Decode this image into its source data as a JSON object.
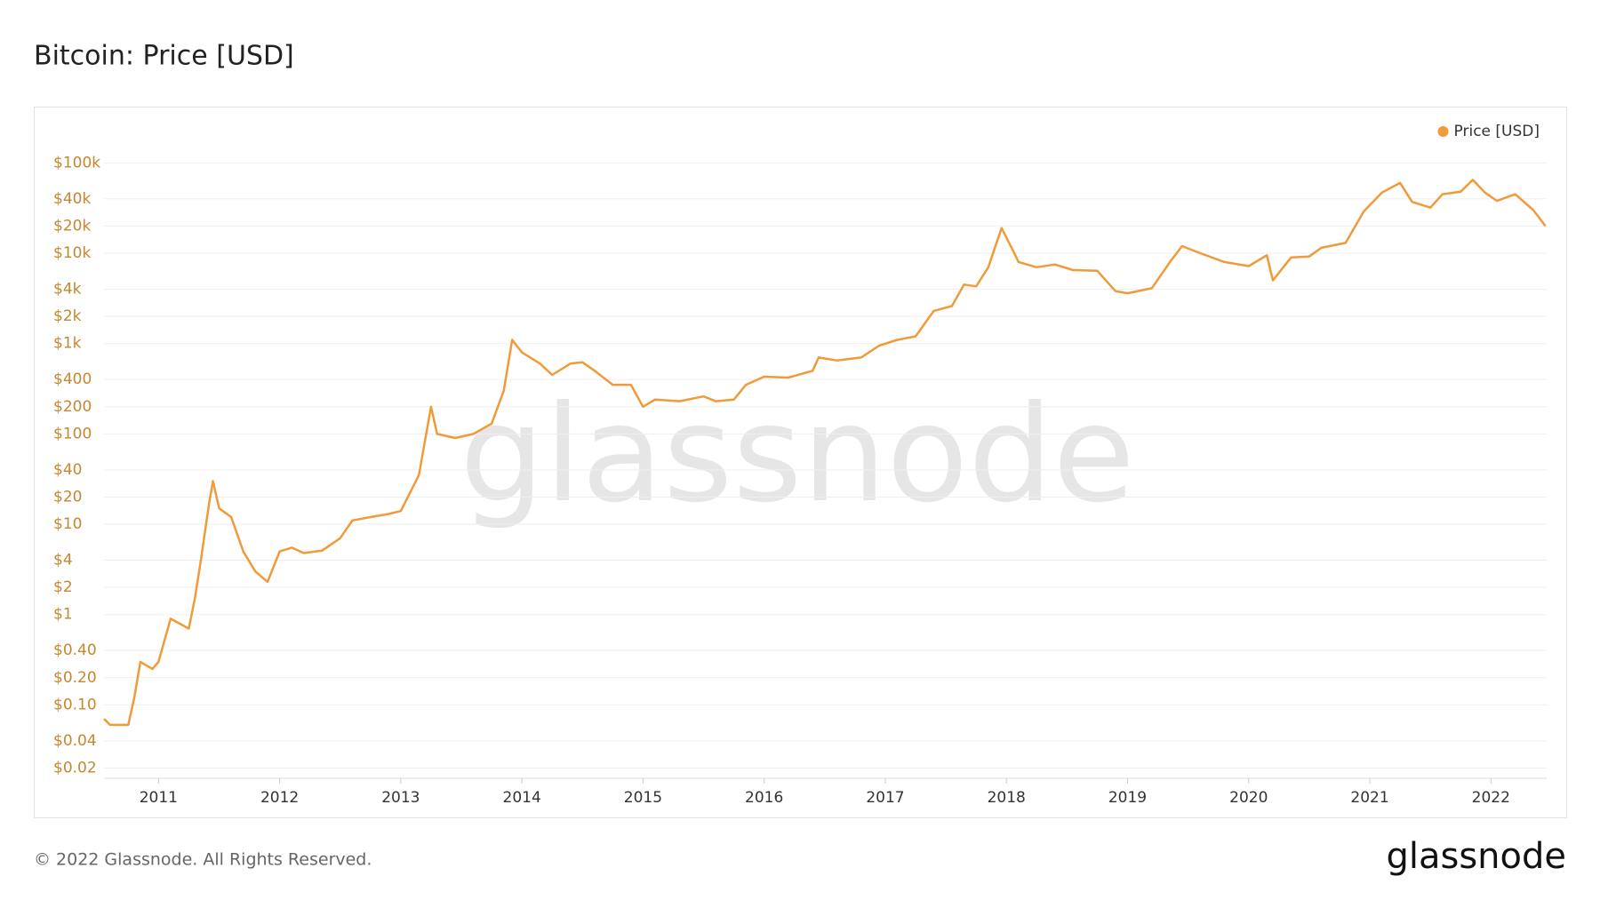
{
  "chart_data": {
    "type": "line",
    "title": "Bitcoin: Price [USD]",
    "footer": "© 2022 Glassnode. All Rights Reserved.",
    "logo": "glassnode",
    "watermark": "glassnode",
    "log_scale": true,
    "grid": true,
    "legend": "top-right",
    "xlim": [
      2010.55,
      2022.46
    ],
    "xticks": [
      2011,
      2012,
      2013,
      2014,
      2015,
      2016,
      2017,
      2018,
      2019,
      2020,
      2021,
      2022
    ],
    "ylim": [
      0.0154,
      155000
    ],
    "yticks": [
      {
        "value": 0.02,
        "label": "$0.02"
      },
      {
        "value": 0.04,
        "label": "$0.04"
      },
      {
        "value": 0.1,
        "label": "$0.10"
      },
      {
        "value": 0.2,
        "label": "$0.20"
      },
      {
        "value": 0.4,
        "label": "$0.40"
      },
      {
        "value": 1,
        "label": "$1"
      },
      {
        "value": 2,
        "label": "$2"
      },
      {
        "value": 4,
        "label": "$4"
      },
      {
        "value": 10,
        "label": "$10"
      },
      {
        "value": 20,
        "label": "$20"
      },
      {
        "value": 40,
        "label": "$40"
      },
      {
        "value": 100,
        "label": "$100"
      },
      {
        "value": 200,
        "label": "$200"
      },
      {
        "value": 400,
        "label": "$400"
      },
      {
        "value": 1000,
        "label": "$1k"
      },
      {
        "value": 2000,
        "label": "$2k"
      },
      {
        "value": 4000,
        "label": "$4k"
      },
      {
        "value": 10000,
        "label": "$10k"
      },
      {
        "value": 20000,
        "label": "$20k"
      },
      {
        "value": 40000,
        "label": "$40k"
      },
      {
        "value": 100000,
        "label": "$100k"
      }
    ],
    "x": [
      2010.55,
      2010.6,
      2010.75,
      2010.8,
      2010.85,
      2010.95,
      2011.0,
      2011.1,
      2011.25,
      2011.3,
      2011.35,
      2011.42,
      2011.45,
      2011.5,
      2011.6,
      2011.7,
      2011.8,
      2011.9,
      2012.0,
      2012.1,
      2012.2,
      2012.35,
      2012.5,
      2012.6,
      2012.75,
      2012.9,
      2013.0,
      2013.15,
      2013.25,
      2013.3,
      2013.45,
      2013.6,
      2013.75,
      2013.85,
      2013.92,
      2014.0,
      2014.15,
      2014.25,
      2014.4,
      2014.5,
      2014.6,
      2014.75,
      2014.9,
      2015.0,
      2015.1,
      2015.3,
      2015.5,
      2015.6,
      2015.75,
      2015.85,
      2016.0,
      2016.2,
      2016.4,
      2016.45,
      2016.6,
      2016.8,
      2016.95,
      2017.1,
      2017.25,
      2017.4,
      2017.55,
      2017.65,
      2017.75,
      2017.85,
      2017.96,
      2018.05,
      2018.1,
      2018.25,
      2018.4,
      2018.55,
      2018.75,
      2018.9,
      2019.0,
      2019.2,
      2019.35,
      2019.45,
      2019.6,
      2019.8,
      2020.0,
      2020.15,
      2020.2,
      2020.35,
      2020.5,
      2020.6,
      2020.8,
      2020.95,
      2021.1,
      2021.25,
      2021.35,
      2021.5,
      2021.6,
      2021.75,
      2021.85,
      2021.95,
      2022.05,
      2022.2,
      2022.35,
      2022.45
    ],
    "series": [
      {
        "name": "Price [USD]",
        "color": "#f09a3a",
        "values": [
          0.07,
          0.06,
          0.06,
          0.12,
          0.3,
          0.25,
          0.3,
          0.9,
          0.7,
          1.5,
          4,
          18,
          30,
          15,
          12,
          5,
          3,
          2.3,
          5,
          5.5,
          4.8,
          5.1,
          7,
          11,
          12,
          13,
          14,
          35,
          200,
          100,
          90,
          100,
          130,
          300,
          1100,
          800,
          600,
          450,
          600,
          620,
          500,
          350,
          350,
          200,
          240,
          230,
          260,
          230,
          240,
          350,
          430,
          420,
          500,
          700,
          650,
          700,
          950,
          1100,
          1200,
          2300,
          2600,
          4500,
          4300,
          7000,
          19000,
          11000,
          8000,
          7000,
          7500,
          6500,
          6400,
          3800,
          3600,
          4100,
          8000,
          12000,
          10000,
          8000,
          7200,
          9500,
          5000,
          9000,
          9200,
          11500,
          13000,
          29000,
          47000,
          60000,
          37000,
          32000,
          45000,
          48000,
          65000,
          47000,
          38000,
          45000,
          30000,
          20000
        ]
      }
    ]
  }
}
